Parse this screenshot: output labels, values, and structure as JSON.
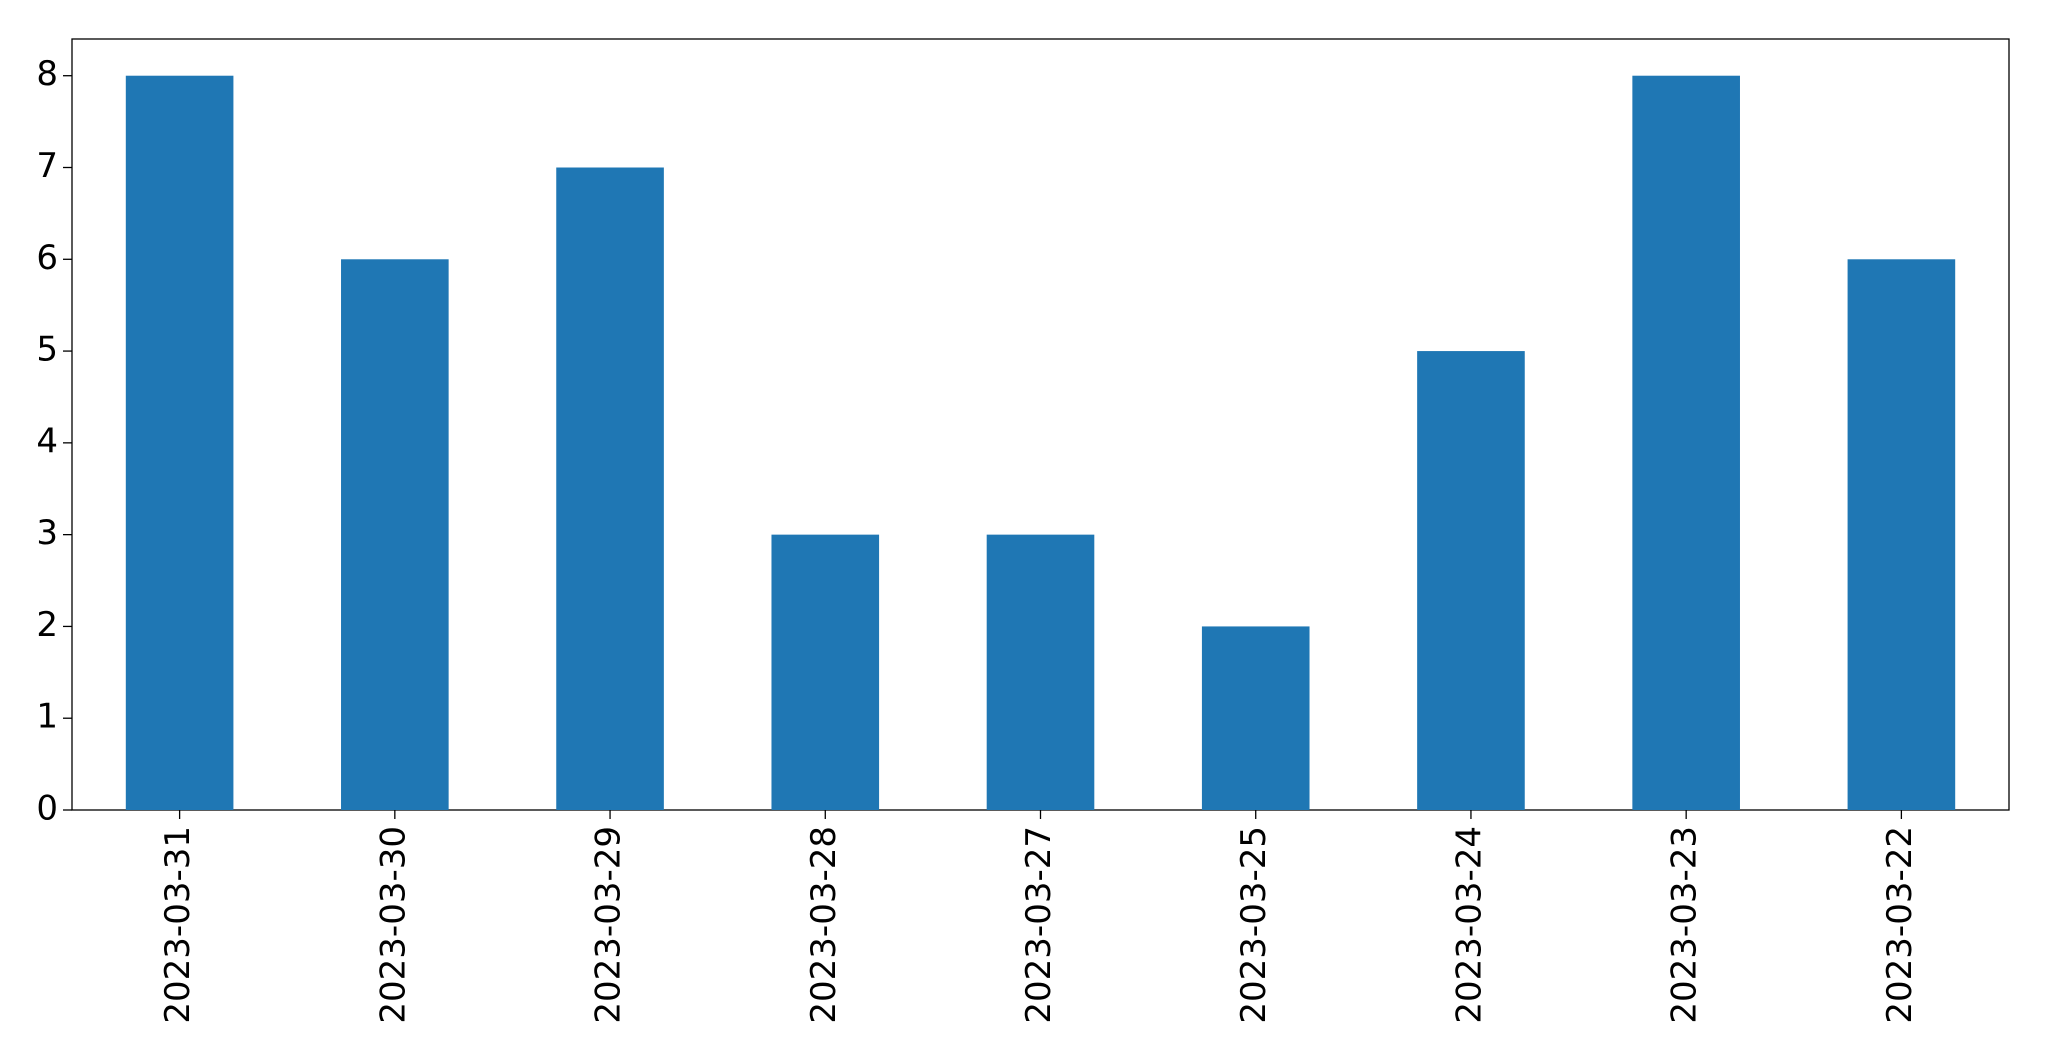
{
  "chart_data": {
    "type": "bar",
    "categories": [
      "2023-03-31",
      "2023-03-30",
      "2023-03-29",
      "2023-03-28",
      "2023-03-27",
      "2023-03-25",
      "2023-03-24",
      "2023-03-23",
      "2023-03-22"
    ],
    "values": [
      8,
      6,
      7,
      3,
      3,
      2,
      5,
      8,
      6
    ],
    "color": "#1f77b4",
    "ylim": [
      0,
      8.4
    ],
    "yticks": [
      0,
      1,
      2,
      3,
      4,
      5,
      6,
      7,
      8
    ],
    "grid": false
  }
}
